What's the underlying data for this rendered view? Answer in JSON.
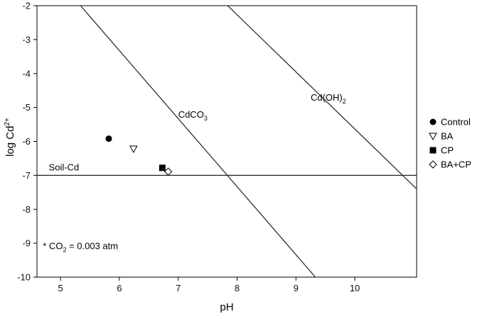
{
  "chart_data": {
    "type": "scatter",
    "xlabel": "pH",
    "ylabel": {
      "base": "log Cd",
      "sup": "2+"
    },
    "xlim": [
      4.6,
      11.05
    ],
    "ylim": [
      -10,
      -2
    ],
    "xticks": [
      5,
      6,
      7,
      8,
      9,
      10
    ],
    "yticks": [
      -2,
      -3,
      -4,
      -5,
      -6,
      -7,
      -8,
      -9,
      -10
    ],
    "grid": false,
    "legend_position": "right",
    "series": [
      {
        "name": "Control",
        "marker": "filled-circle",
        "x": [
          5.82
        ],
        "y": [
          -5.92
        ]
      },
      {
        "name": "BA",
        "marker": "open-triangle-down",
        "x": [
          6.24
        ],
        "y": [
          -6.22
        ]
      },
      {
        "name": "CP",
        "marker": "filled-square",
        "x": [
          6.73
        ],
        "y": [
          -6.78
        ]
      },
      {
        "name": "BA+CP",
        "marker": "open-diamond",
        "x": [
          6.83
        ],
        "y": [
          -6.89
        ]
      }
    ],
    "lines": [
      {
        "label": "Soil-Cd",
        "points": [
          [
            4.6,
            -7.0
          ],
          [
            11.05,
            -7.0
          ]
        ],
        "label_pos": [
          4.8,
          -6.86
        ]
      },
      {
        "label": "CdCO",
        "label_sub": "3",
        "points": [
          [
            5.34,
            -2.0
          ],
          [
            9.33,
            -10.0
          ]
        ],
        "label_pos": [
          7.0,
          -5.3
        ]
      },
      {
        "label": "Cd(OH)",
        "label_sub": "2",
        "points": [
          [
            7.84,
            -2.0
          ],
          [
            11.05,
            -7.4
          ]
        ],
        "label_pos": [
          9.25,
          -4.8
        ]
      }
    ],
    "annotation": {
      "prefix": "* CO",
      "sub": "2",
      "suffix": " = 0.003 atm",
      "pos": [
        4.7,
        -9.18
      ]
    }
  }
}
